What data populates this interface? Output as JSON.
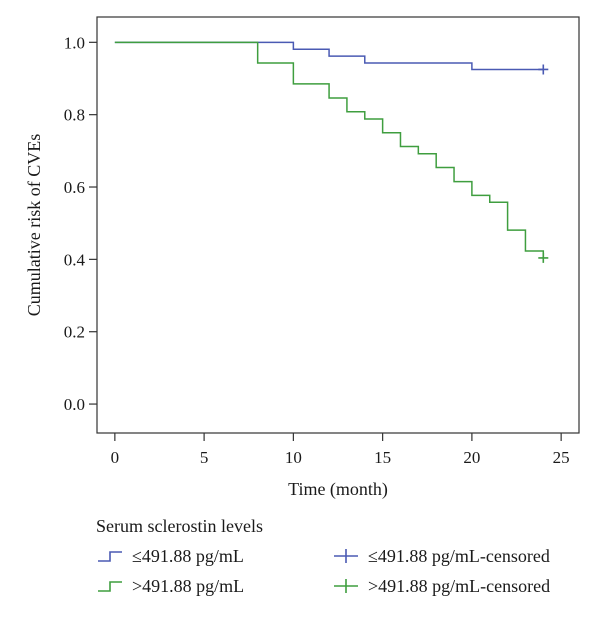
{
  "chart_data": {
    "type": "line",
    "step": true,
    "xlabel": "Time (month)",
    "ylabel": "Cumulative risk of CVEs",
    "xlim": [
      -1,
      26
    ],
    "ylim": [
      -0.08,
      1.07
    ],
    "xticks": [
      0,
      5,
      10,
      15,
      20,
      25
    ],
    "yticks": [
      0.0,
      0.2,
      0.4,
      0.6,
      0.8,
      1.0
    ],
    "xtick_labels": [
      "0",
      "5",
      "10",
      "15",
      "20",
      "25"
    ],
    "ytick_labels": [
      "0.0",
      "0.2",
      "0.4",
      "0.6",
      "0.8",
      "1.0"
    ],
    "grid": false,
    "legend_placement": "bottom",
    "series": [
      {
        "name": "≤491.88 pg/mL",
        "censored_name": "≤491.88 pg/mL-censored",
        "color": "#4a5ab3",
        "x": [
          0,
          10,
          12,
          14,
          20,
          24
        ],
        "y": [
          1.0,
          0.981,
          0.962,
          0.943,
          0.925,
          0.925
        ],
        "censored": [
          {
            "x": 24,
            "y": 0.925
          }
        ]
      },
      {
        "name": ">491.88 pg/mL",
        "censored_name": ">491.88 pg/mL-censored",
        "color": "#3f9e3f",
        "x": [
          0,
          8,
          10,
          12,
          13,
          14,
          15,
          16,
          17,
          18,
          19,
          20,
          21,
          22,
          23,
          24
        ],
        "y": [
          1.0,
          0.943,
          0.885,
          0.846,
          0.808,
          0.788,
          0.75,
          0.712,
          0.692,
          0.654,
          0.615,
          0.577,
          0.558,
          0.481,
          0.423,
          0.404
        ],
        "censored": [
          {
            "x": 24,
            "y": 0.404
          }
        ]
      }
    ]
  },
  "legend": {
    "title": "Serum sclerostin levels"
  }
}
